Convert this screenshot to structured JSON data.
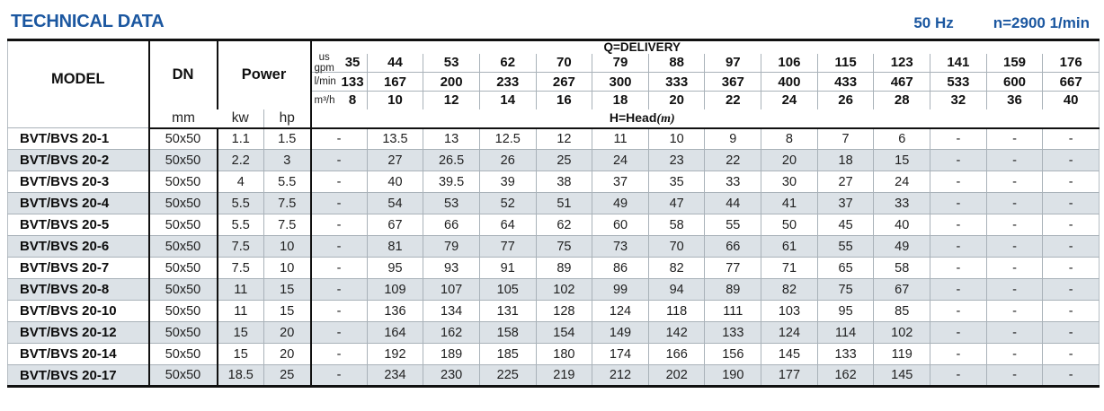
{
  "colors": {
    "accent_blue": "#1b57a0",
    "row_shade": "#dce2e7"
  },
  "page": {
    "title": "TECHNICAL DATA",
    "frequency": "50 Hz",
    "speed": "n=2900 1/min"
  },
  "table": {
    "model_header": "MODEL",
    "dn_header": "DN",
    "dn_unit": "mm",
    "power_header": "Power",
    "power_unit_kw": "kw",
    "power_unit_hp": "hp",
    "delivery_label": "Q=DELIVERY",
    "head_label": "H=Head",
    "head_unit": "(m)",
    "unit_rows": [
      {
        "label": "us\ngpm",
        "values": [
          "35",
          "44",
          "53",
          "62",
          "70",
          "79",
          "88",
          "97",
          "106",
          "115",
          "123",
          "141",
          "159",
          "176"
        ]
      },
      {
        "label": "l/min",
        "values": [
          "133",
          "167",
          "200",
          "233",
          "267",
          "300",
          "333",
          "367",
          "400",
          "433",
          "467",
          "533",
          "600",
          "667"
        ]
      },
      {
        "label": "m³/h",
        "values": [
          "8",
          "10",
          "12",
          "14",
          "16",
          "18",
          "20",
          "22",
          "24",
          "26",
          "28",
          "32",
          "36",
          "40"
        ]
      }
    ],
    "rows": [
      {
        "model": "BVT/BVS 20-1",
        "dn": "50x50",
        "kw": "1.1",
        "hp": "1.5",
        "heads": [
          "-",
          "13.5",
          "13",
          "12.5",
          "12",
          "11",
          "10",
          "9",
          "8",
          "7",
          "6",
          "-",
          "-",
          "-"
        ]
      },
      {
        "model": "BVT/BVS 20-2",
        "dn": "50x50",
        "kw": "2.2",
        "hp": "3",
        "heads": [
          "-",
          "27",
          "26.5",
          "26",
          "25",
          "24",
          "23",
          "22",
          "20",
          "18",
          "15",
          "-",
          "-",
          "-"
        ]
      },
      {
        "model": "BVT/BVS 20-3",
        "dn": "50x50",
        "kw": "4",
        "hp": "5.5",
        "heads": [
          "-",
          "40",
          "39.5",
          "39",
          "38",
          "37",
          "35",
          "33",
          "30",
          "27",
          "24",
          "-",
          "-",
          "-"
        ]
      },
      {
        "model": "BVT/BVS 20-4",
        "dn": "50x50",
        "kw": "5.5",
        "hp": "7.5",
        "heads": [
          "-",
          "54",
          "53",
          "52",
          "51",
          "49",
          "47",
          "44",
          "41",
          "37",
          "33",
          "-",
          "-",
          "-"
        ]
      },
      {
        "model": "BVT/BVS 20-5",
        "dn": "50x50",
        "kw": "5.5",
        "hp": "7.5",
        "heads": [
          "-",
          "67",
          "66",
          "64",
          "62",
          "60",
          "58",
          "55",
          "50",
          "45",
          "40",
          "-",
          "-",
          "-"
        ]
      },
      {
        "model": "BVT/BVS 20-6",
        "dn": "50x50",
        "kw": "7.5",
        "hp": "10",
        "heads": [
          "-",
          "81",
          "79",
          "77",
          "75",
          "73",
          "70",
          "66",
          "61",
          "55",
          "49",
          "-",
          "-",
          "-"
        ]
      },
      {
        "model": "BVT/BVS 20-7",
        "dn": "50x50",
        "kw": "7.5",
        "hp": "10",
        "heads": [
          "-",
          "95",
          "93",
          "91",
          "89",
          "86",
          "82",
          "77",
          "71",
          "65",
          "58",
          "-",
          "-",
          "-"
        ]
      },
      {
        "model": "BVT/BVS 20-8",
        "dn": "50x50",
        "kw": "11",
        "hp": "15",
        "heads": [
          "-",
          "109",
          "107",
          "105",
          "102",
          "99",
          "94",
          "89",
          "82",
          "75",
          "67",
          "-",
          "-",
          "-"
        ]
      },
      {
        "model": "BVT/BVS 20-10",
        "dn": "50x50",
        "kw": "11",
        "hp": "15",
        "heads": [
          "-",
          "136",
          "134",
          "131",
          "128",
          "124",
          "118",
          "111",
          "103",
          "95",
          "85",
          "-",
          "-",
          "-"
        ]
      },
      {
        "model": "BVT/BVS 20-12",
        "dn": "50x50",
        "kw": "15",
        "hp": "20",
        "heads": [
          "-",
          "164",
          "162",
          "158",
          "154",
          "149",
          "142",
          "133",
          "124",
          "114",
          "102",
          "-",
          "-",
          "-"
        ]
      },
      {
        "model": "BVT/BVS 20-14",
        "dn": "50x50",
        "kw": "15",
        "hp": "20",
        "heads": [
          "-",
          "192",
          "189",
          "185",
          "180",
          "174",
          "166",
          "156",
          "145",
          "133",
          "119",
          "-",
          "-",
          "-"
        ]
      },
      {
        "model": "BVT/BVS 20-17",
        "dn": "50x50",
        "kw": "18.5",
        "hp": "25",
        "heads": [
          "-",
          "234",
          "230",
          "225",
          "219",
          "212",
          "202",
          "190",
          "177",
          "162",
          "145",
          "-",
          "-",
          "-"
        ]
      }
    ]
  }
}
